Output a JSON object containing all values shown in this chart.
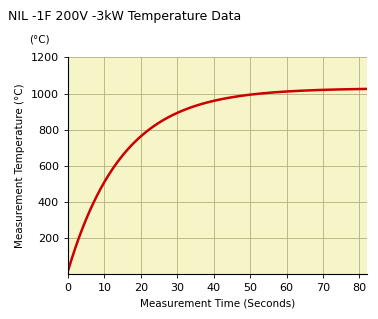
{
  "title": "NIL -1F 200V -3kW Temperature Data",
  "ylabel_rotated": "Measurement Temperature (°C)",
  "ylabel_top": "(°C)",
  "xlabel": "Measurement Time (Seconds)",
  "xlim": [
    0,
    82
  ],
  "ylim": [
    0,
    1200
  ],
  "xticks": [
    0,
    10,
    20,
    30,
    40,
    50,
    60,
    70,
    80
  ],
  "yticks": [
    200,
    400,
    600,
    800,
    1000,
    1200
  ],
  "background_color": "#f5f5c8",
  "plot_color": "#cc0000",
  "grid_color": "#b0b080",
  "line_width": 1.8,
  "asymptote": 1030,
  "time_constant": 15.0,
  "start_temp": 20,
  "title_fontsize": 9,
  "axis_label_fontsize": 7.5,
  "tick_fontsize": 8
}
